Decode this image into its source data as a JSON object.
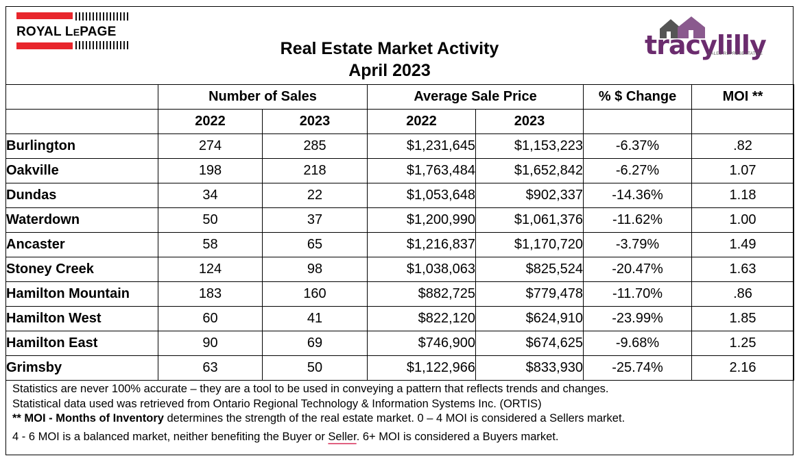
{
  "header": {
    "brand_left": "ROYAL LEPAGE",
    "brand_left_main": "ROYAL L",
    "brand_left_small": "E",
    "brand_left_tail": "PAGE",
    "title_line1": "Real Estate Market Activity",
    "title_line2": "April 2023",
    "brand_right": "tracylilly",
    "brand_right_sub": "SALES REPRESENTATIVE",
    "colors": {
      "royal_red": "#e8262c",
      "tracy_purple": "#6b2c6e"
    }
  },
  "table": {
    "group_headers": {
      "sales": "Number of Sales",
      "price": "Average Sale Price",
      "change": "% $ Change",
      "moi": "MOI **"
    },
    "year_headers": [
      "2022",
      "2023",
      "2022",
      "2023"
    ],
    "rows": [
      {
        "area": "Burlington",
        "sales_2022": "274",
        "sales_2023": "285",
        "price_2022": "$1,231,645",
        "price_2023": "$1,153,223",
        "change": "-6.37%",
        "moi": ".82"
      },
      {
        "area": "Oakville",
        "sales_2022": "198",
        "sales_2023": "218",
        "price_2022": "$1,763,484",
        "price_2023": "$1,652,842",
        "change": "-6.27%",
        "moi": "1.07"
      },
      {
        "area": "Dundas",
        "sales_2022": "34",
        "sales_2023": "22",
        "price_2022": "$1,053,648",
        "price_2023": "$902,337",
        "change": "-14.36%",
        "moi": "1.18"
      },
      {
        "area": "Waterdown",
        "sales_2022": "50",
        "sales_2023": "37",
        "price_2022": "$1,200,990",
        "price_2023": "$1,061,376",
        "change": "-11.62%",
        "moi": "1.00"
      },
      {
        "area": "Ancaster",
        "sales_2022": "58",
        "sales_2023": "65",
        "price_2022": "$1,216,837",
        "price_2023": "$1,170,720",
        "change": "-3.79%",
        "moi": "1.49"
      },
      {
        "area": "Stoney Creek",
        "sales_2022": "124",
        "sales_2023": "98",
        "price_2022": "$1,038,063",
        "price_2023": "$825,524",
        "change": "-20.47%",
        "moi": "1.63"
      },
      {
        "area": "Hamilton Mountain",
        "sales_2022": "183",
        "sales_2023": "160",
        "price_2022": "$882,725",
        "price_2023": "$779,478",
        "change": "-11.70%",
        "moi": ".86"
      },
      {
        "area": "Hamilton West",
        "sales_2022": "60",
        "sales_2023": "41",
        "price_2022": "$822,120",
        "price_2023": "$624,910",
        "change": "-23.99%",
        "moi": "1.85"
      },
      {
        "area": "Hamilton East",
        "sales_2022": "90",
        "sales_2023": "69",
        "price_2022": "$746,900",
        "price_2023": "$674,625",
        "change": "-9.68%",
        "moi": "1.25"
      },
      {
        "area": "Grimsby",
        "sales_2022": "63",
        "sales_2023": "50",
        "price_2022": "$1,122,966",
        "price_2023": "$833,930",
        "change": "-25.74%",
        "moi": "2.16"
      }
    ]
  },
  "notes": {
    "line1": "Statistics are never 100% accurate – they are a tool to be used in conveying a pattern that reflects trends and changes.",
    "line2": "Statistical data used was retrieved from Ontario Regional Technology & Information Systems Inc. (ORTIS)",
    "line3_bold": "** MOI - Months of Inventory",
    "line3_rest": " determines the strength of the real estate market. 0 – 4 MOI is considered a Sellers market.",
    "line4_a": "4 - 6 MOI is a balanced market, neither benefiting the Buyer or ",
    "line4_b": "Seller",
    "line4_c": ". 6+ MOI is considered a Buyers market."
  }
}
